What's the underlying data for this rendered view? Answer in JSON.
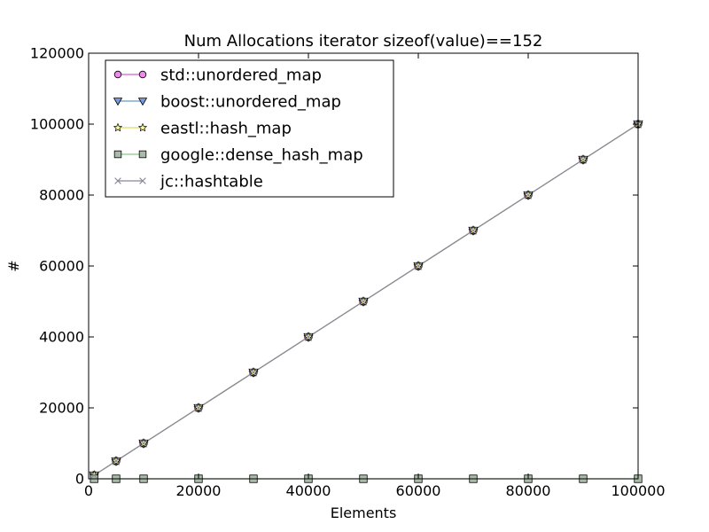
{
  "chart_data": {
    "type": "line",
    "title": "Num Allocations iterator sizeof(value)==152",
    "xlabel": "Elements",
    "ylabel": "#",
    "xlim": [
      0,
      100000
    ],
    "ylim": [
      0,
      120000
    ],
    "xticks": [
      0,
      20000,
      40000,
      60000,
      80000,
      100000
    ],
    "yticks": [
      0,
      20000,
      40000,
      60000,
      80000,
      100000,
      120000
    ],
    "x": [
      1000,
      5000,
      10000,
      20000,
      30000,
      40000,
      50000,
      60000,
      70000,
      80000,
      90000,
      100000
    ],
    "grid": false,
    "legend_position": "top-left",
    "series": [
      {
        "name": "std::unordered_map",
        "marker": "circle",
        "line_color": "#cc66cc",
        "marker_fill": "#ee88ee",
        "values": [
          1000,
          5000,
          10000,
          20000,
          30000,
          40000,
          50000,
          60000,
          70000,
          80000,
          90000,
          100000
        ]
      },
      {
        "name": "boost::unordered_map",
        "marker": "triangle-down",
        "line_color": "#6699cc",
        "marker_fill": "#7799dd",
        "values": [
          1000,
          5000,
          10000,
          20000,
          30000,
          40000,
          50000,
          60000,
          70000,
          80000,
          90000,
          100000
        ]
      },
      {
        "name": "eastl::hash_map",
        "marker": "star",
        "line_color": "#dddd66",
        "marker_fill": "#ffff88",
        "values": [
          1000,
          5000,
          10000,
          20000,
          30000,
          40000,
          50000,
          60000,
          70000,
          80000,
          90000,
          100000
        ]
      },
      {
        "name": "google::dense_hash_map",
        "marker": "square",
        "line_color": "#88cc88",
        "marker_fill": "#aabbaa",
        "values": [
          1,
          1,
          1,
          1,
          1,
          1,
          1,
          1,
          1,
          1,
          1,
          1
        ]
      },
      {
        "name": "jc::hashtable",
        "marker": "x",
        "line_color": "#888899",
        "marker_fill": "#888899",
        "values": [
          1000,
          5000,
          10000,
          20000,
          30000,
          40000,
          50000,
          60000,
          70000,
          80000,
          90000,
          100000
        ]
      }
    ]
  }
}
